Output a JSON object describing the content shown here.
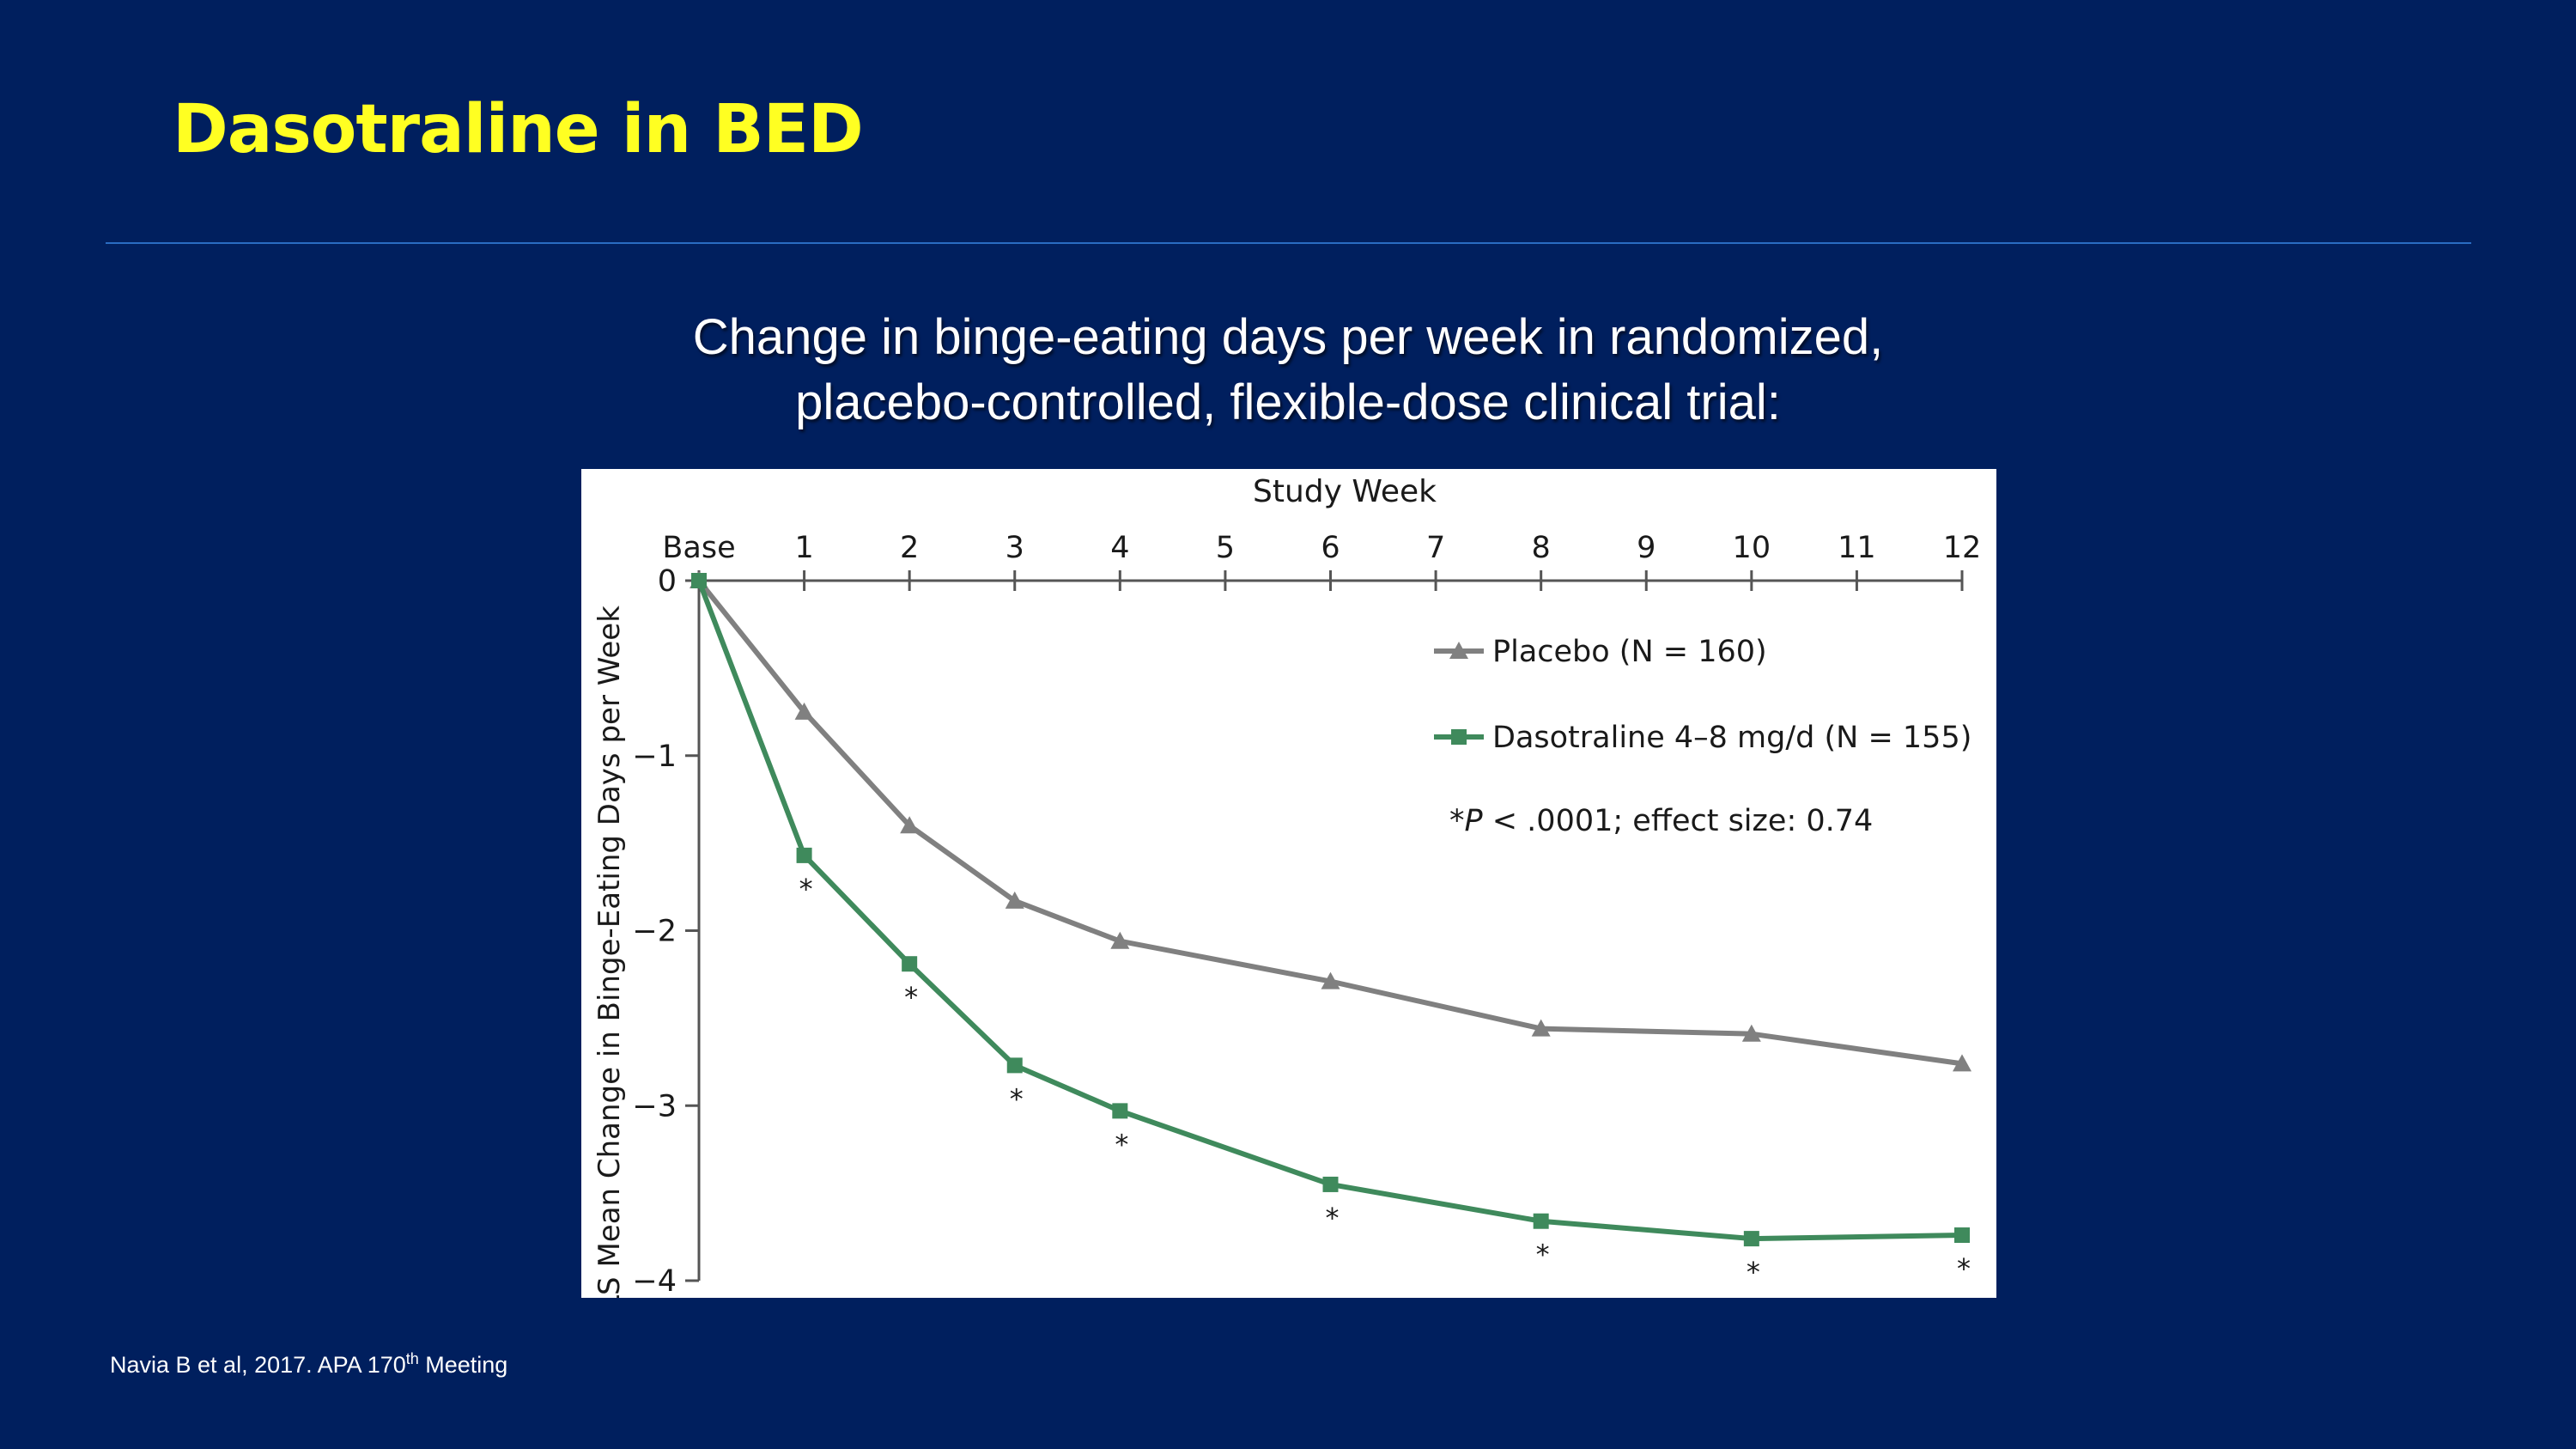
{
  "slide": {
    "title": "Dasotraline in BED",
    "subtitle_line1": "Change in binge-eating days per week in randomized,",
    "subtitle_line2": "placebo-controlled, flexible-dose clinical trial:",
    "footnote_main": "Navia B et al, 2017.  APA 170",
    "footnote_sup": "th",
    "footnote_end": " Meeting"
  },
  "chart_data": {
    "type": "line",
    "xlabel": "Study Week",
    "ylabel": "LS Mean Change in Binge-Eating Days per Week",
    "x": [
      0,
      1,
      2,
      3,
      4,
      6,
      8,
      10,
      12
    ],
    "x_ticks": [
      0,
      1,
      2,
      3,
      4,
      5,
      6,
      7,
      8,
      9,
      10,
      11,
      12
    ],
    "x_tick_labels": [
      "Base",
      "1",
      "2",
      "3",
      "4",
      "5",
      "6",
      "7",
      "8",
      "9",
      "10",
      "11",
      "12"
    ],
    "ylim": [
      -4,
      0
    ],
    "y_ticks": [
      0,
      -1,
      -2,
      -3,
      -4
    ],
    "y_tick_labels": [
      "0",
      "−1",
      "−2",
      "−3",
      "−4"
    ],
    "series": [
      {
        "name": "Placebo (N = 160)",
        "marker": "triangle",
        "color": "#808080",
        "values": [
          0,
          -0.75,
          -1.4,
          -1.83,
          -2.06,
          -2.29,
          -2.56,
          -2.59,
          -2.76
        ]
      },
      {
        "name": "Dasotraline 4–8 mg/d (N = 155)",
        "marker": "square",
        "color": "#3f8a5c",
        "values": [
          0,
          -1.57,
          -2.19,
          -2.77,
          -3.03,
          -3.45,
          -3.66,
          -3.76,
          -3.74
        ],
        "significant": [
          false,
          true,
          true,
          true,
          true,
          true,
          true,
          true,
          true
        ]
      }
    ],
    "significance_marker": "*",
    "annotation": {
      "symbol": "*",
      "p_italic": "P",
      "text": " < .0001; effect size: 0.74"
    },
    "legend_position": "top-right",
    "grid": false
  }
}
